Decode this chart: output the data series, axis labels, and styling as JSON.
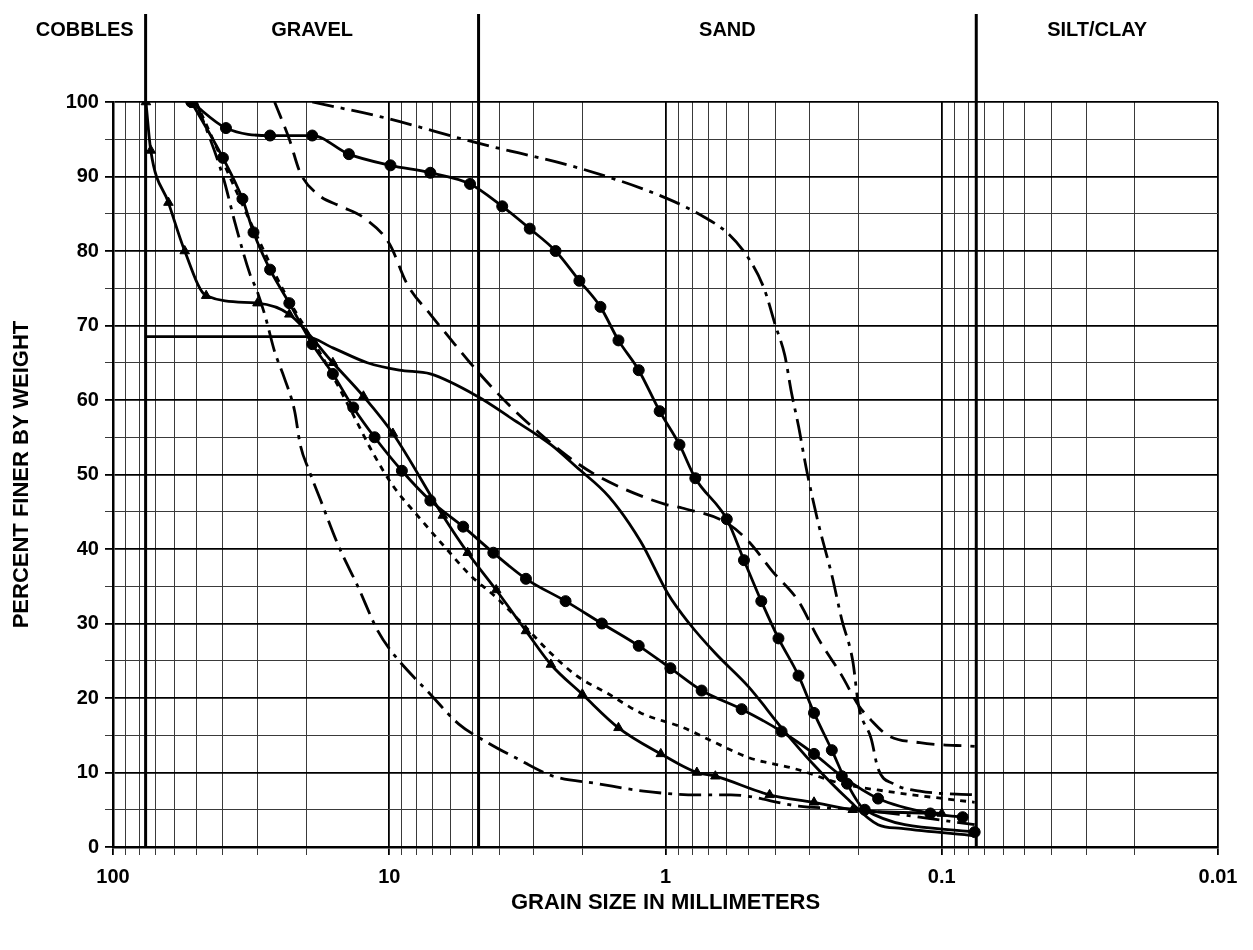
{
  "chart_data": {
    "type": "line",
    "xlabel": "GRAIN SIZE IN MILLIMETERS",
    "ylabel": "PERCENT FINER BY WEIGHT",
    "log": "x",
    "grid": true,
    "xlim": [
      100,
      0.01
    ],
    "xticks": [
      100,
      {
        "value": 90,
        "label": null
      },
      {
        "value": 80,
        "label": null
      },
      {
        "value": 70,
        "label": null
      },
      {
        "value": 60,
        "label": null
      },
      {
        "value": 50,
        "label": null
      },
      {
        "value": 40,
        "label": null
      },
      {
        "value": 30,
        "label": null
      },
      {
        "value": 20,
        "label": null
      },
      10,
      {
        "value": 9,
        "label": null
      },
      {
        "value": 8,
        "label": null
      },
      {
        "value": 7,
        "label": null
      },
      {
        "value": 6,
        "label": null
      },
      {
        "value": 5,
        "label": null
      },
      {
        "value": 4,
        "label": null
      },
      {
        "value": 3,
        "label": null
      },
      {
        "value": 2,
        "label": null
      },
      1,
      {
        "value": 0.9,
        "label": null
      },
      {
        "value": 0.8,
        "label": null
      },
      {
        "value": 0.7,
        "label": null
      },
      {
        "value": 0.6,
        "label": null
      },
      {
        "value": 0.5,
        "label": null
      },
      {
        "value": 0.4,
        "label": null
      },
      {
        "value": 0.3,
        "label": null
      },
      {
        "value": 0.2,
        "label": null
      },
      0.1,
      {
        "value": 0.09,
        "label": null
      },
      {
        "value": 0.08,
        "label": null
      },
      {
        "value": 0.07,
        "label": null
      },
      {
        "value": 0.06,
        "label": null
      },
      {
        "value": 0.05,
        "label": null
      },
      {
        "value": 0.04,
        "label": null
      },
      {
        "value": 0.03,
        "label": null
      },
      {
        "value": 0.02,
        "label": null
      },
      0.01
    ],
    "ylim": [
      0,
      100
    ],
    "yticks": [
      0,
      {
        "value": 5,
        "label": null
      },
      10,
      {
        "value": 15,
        "label": null
      },
      20,
      {
        "value": 25,
        "label": null
      },
      30,
      {
        "value": 35,
        "label": null
      },
      40,
      {
        "value": 45,
        "label": null
      },
      50,
      {
        "value": 55,
        "label": null
      },
      60,
      {
        "value": 65,
        "label": null
      },
      70,
      {
        "value": 75,
        "label": null
      },
      80,
      {
        "value": 85,
        "label": null
      },
      90,
      {
        "value": 95,
        "label": null
      },
      100
    ],
    "ref_lines": [
      {
        "axis": "x",
        "value": 76.2
      },
      {
        "axis": "x",
        "value": 4.75
      },
      {
        "axis": "x",
        "value": 0.075
      }
    ],
    "annotations": [
      "COBBLES",
      "GRAVEL",
      "SAND",
      "SILT/CLAY"
    ],
    "series": [
      {
        "color": "#000000",
        "marker": "circle",
        "line_style": "solid",
        "x": [
          52,
          39,
          27,
          19,
          14,
          9.9,
          7.1,
          5.1,
          3.9,
          3.1,
          2.5,
          2.05,
          1.72,
          1.48,
          1.25,
          1.05,
          0.89,
          0.78,
          0.6,
          0.52,
          0.45,
          0.39,
          0.33,
          0.29,
          0.25,
          0.22,
          0.19,
          0.076
        ],
        "values": [
          100,
          96.5,
          95.5,
          95.5,
          93,
          91.5,
          90.5,
          89,
          86,
          83,
          80,
          76,
          72.5,
          68,
          64,
          58.5,
          54,
          49.5,
          44,
          38.5,
          33,
          28,
          23,
          18,
          13,
          8.5,
          5,
          2
        ]
      },
      {
        "color": "#000000",
        "marker": "none",
        "line_style": "dashdot",
        "x": [
          19,
          10.7,
          4.8,
          2,
          0.98,
          0.72,
          0.6,
          0.5,
          0.44,
          0.4,
          0.37,
          0.35,
          0.33,
          0.31,
          0.28,
          0.25,
          0.23,
          0.21,
          0.2,
          0.18,
          0.17,
          0.15,
          0.12,
          0.076
        ],
        "values": [
          100,
          98,
          94.5,
          91,
          87,
          84.5,
          82.5,
          79,
          75,
          70,
          66,
          61,
          56.5,
          51,
          43.5,
          36.5,
          30.5,
          25,
          19,
          14.5,
          10.5,
          8.5,
          7.5,
          7
        ]
      },
      {
        "color": "#000000",
        "marker": "none",
        "line_style": "dashed",
        "x": [
          26,
          23,
          21,
          18,
          15,
          12.4,
          10,
          8.6,
          7.1,
          6.1,
          5.1,
          4.2,
          3.5,
          2.85,
          2.27,
          1.8,
          1.3,
          1,
          0.87,
          0.6,
          0.5,
          0.41,
          0.33,
          0.28,
          0.23,
          0.2,
          0.18,
          0.157,
          0.12,
          0.076
        ],
        "values": [
          100,
          95,
          90.5,
          87.5,
          86,
          84.5,
          81,
          75.5,
          71.5,
          68.5,
          65,
          61.5,
          58.5,
          55.5,
          52.5,
          50,
          47.5,
          46,
          45.5,
          43.5,
          41,
          37,
          33,
          28,
          23,
          19,
          17,
          15,
          14,
          13.5
        ]
      },
      {
        "color": "#000000",
        "marker": "none",
        "line_style": "solid",
        "x": [
          76.2,
          20,
          16,
          12,
          9.2,
          7.1,
          4.8,
          3.6,
          2.6,
          2.1,
          1.6,
          1.23,
          0.98,
          0.82,
          0.66,
          0.5,
          0.38,
          0.29,
          0.22,
          0.17,
          0.14,
          0.076
        ],
        "values": [
          68.5,
          68.5,
          67,
          65,
          64,
          63.5,
          60.5,
          57.5,
          54,
          51,
          47,
          41,
          34,
          30,
          26,
          21.5,
          16,
          11,
          6.5,
          3,
          2.5,
          1.5
        ]
      },
      {
        "color": "#000000",
        "marker": "circle",
        "line_style": "solid",
        "x": [
          52,
          40,
          34,
          31,
          27,
          23,
          19,
          16,
          13.5,
          11.3,
          9,
          7.1,
          5.4,
          4.2,
          3.2,
          2.3,
          1.7,
          1.25,
          0.96,
          0.74,
          0.53,
          0.38,
          0.29,
          0.23,
          0.17,
          0.11,
          0.084
        ],
        "values": [
          100,
          92.5,
          87,
          82.5,
          77.5,
          73,
          67.5,
          63.5,
          59,
          55,
          50.5,
          46.5,
          43,
          39.5,
          36,
          33,
          30,
          27,
          24,
          21,
          18.5,
          15.5,
          12.5,
          9.5,
          6.5,
          4.5,
          4
        ]
      },
      {
        "color": "#000000",
        "marker": "triangle",
        "line_style": "solid",
        "x": [
          76,
          73,
          63,
          55,
          46,
          30,
          23,
          16,
          12.4,
          9.7,
          6.4,
          5.2,
          4.1,
          3.2,
          2.6,
          2,
          1.48,
          1.04,
          0.77,
          0.66,
          0.42,
          0.29,
          0.21,
          0.1
        ],
        "values": [
          100,
          93.5,
          86.5,
          80,
          74,
          73,
          71.5,
          65,
          60.5,
          55.5,
          44.5,
          39.5,
          34.5,
          29,
          24.5,
          20.5,
          16,
          12.5,
          10,
          9.5,
          7,
          6,
          5,
          4.5
        ]
      },
      {
        "color": "#000000",
        "marker": "none",
        "line_style": "dashdot",
        "x": [
          50,
          40,
          36,
          32,
          30,
          28,
          26,
          24,
          22,
          21,
          19.5,
          17.7,
          15.3,
          13,
          11,
          9.7,
          7.1,
          5.6,
          4.4,
          3.5,
          2.55,
          1.76,
          1.2,
          0.77,
          0.58,
          0.33,
          0.2,
          0.076
        ],
        "values": [
          100,
          90,
          83.5,
          77,
          74.5,
          71,
          66.5,
          63,
          58.5,
          54,
          50.5,
          46.5,
          40.5,
          35,
          29,
          26,
          20.5,
          16.5,
          14,
          12,
          9.5,
          8.5,
          7.5,
          7,
          7,
          5.5,
          5,
          3
        ]
      },
      {
        "color": "#000000",
        "marker": "none",
        "line_style": "dotted",
        "x": [
          50,
          40,
          31,
          24,
          20,
          17,
          13.5,
          11.5,
          9.7,
          7.7,
          6.2,
          5.1,
          4.1,
          3.3,
          2.6,
          2.1,
          1.6,
          1.23,
          0.86,
          0.66,
          0.5,
          0.34,
          0.23,
          0.16,
          0.076
        ],
        "values": [
          100,
          92,
          83,
          74.5,
          69.5,
          65,
          58,
          53,
          48.5,
          44,
          40,
          36.5,
          33.5,
          30,
          26,
          23,
          20.5,
          18,
          16,
          14,
          12,
          10.5,
          8.5,
          7.5,
          6
        ]
      }
    ]
  }
}
